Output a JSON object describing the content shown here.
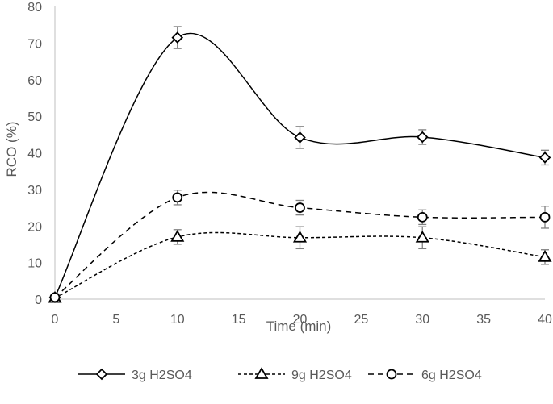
{
  "chart_data": {
    "type": "line",
    "title": "",
    "xlabel": "Time (min)",
    "ylabel": "RCO (%)",
    "xlim": [
      0,
      40
    ],
    "ylim": [
      0,
      80
    ],
    "x_ticks": [
      0,
      5,
      10,
      15,
      20,
      25,
      30,
      35,
      40
    ],
    "y_ticks": [
      0,
      10,
      20,
      30,
      40,
      50,
      60,
      70,
      80
    ],
    "grid": false,
    "legend_position": "bottom",
    "x": [
      0,
      10,
      20,
      30,
      40
    ],
    "series": [
      {
        "name": "3g H2SO4",
        "marker": "diamond",
        "line_style": "solid",
        "color": "#000000",
        "values": [
          0.5,
          71.5,
          44.2,
          44.3,
          38.7
        ],
        "errors": [
          0.5,
          3.0,
          3.0,
          2.0,
          2.0
        ]
      },
      {
        "name": "9g H2SO4",
        "marker": "triangle",
        "line_style": "dotted",
        "color": "#000000",
        "values": [
          0.3,
          17.0,
          16.8,
          16.8,
          11.5
        ],
        "errors": [
          0.5,
          2.0,
          3.0,
          3.0,
          2.0
        ]
      },
      {
        "name": "6g H2SO4",
        "marker": "circle",
        "line_style": "dashed",
        "color": "#000000",
        "values": [
          0.5,
          27.8,
          25.0,
          22.4,
          22.4
        ],
        "errors": [
          0.5,
          2.0,
          2.0,
          2.0,
          3.0
        ]
      }
    ]
  }
}
